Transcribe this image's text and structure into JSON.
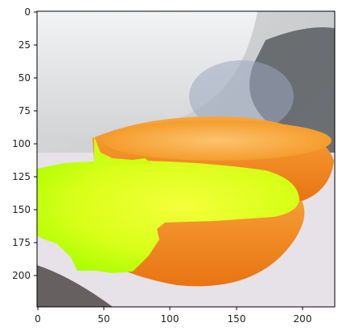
{
  "figure": {
    "x_ticks": [
      "0",
      "50",
      "100",
      "150",
      "200"
    ],
    "y_ticks": [
      "0",
      "25",
      "50",
      "75",
      "100",
      "125",
      "150",
      "175",
      "200"
    ],
    "image_extent": {
      "x": [
        0,
        224
      ],
      "y": [
        0,
        224
      ]
    },
    "overlay_color": "#b7ff00",
    "orange_color": "#f08a12",
    "frame_color": "#000000"
  }
}
